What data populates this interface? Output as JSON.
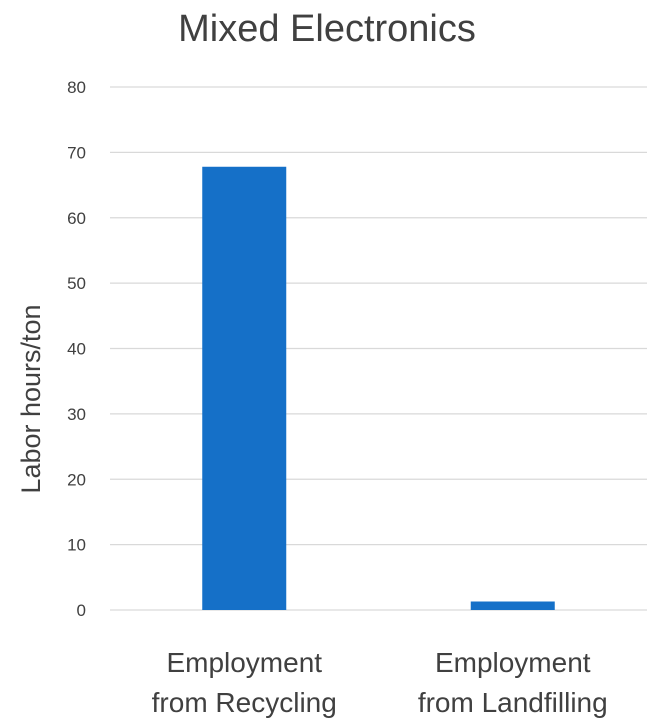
{
  "chart_data": {
    "type": "bar",
    "title": "Mixed Electronics",
    "xlabel": "",
    "ylabel": "Labor hours/ton",
    "categories": [
      [
        "Employment",
        "from Recycling"
      ],
      [
        "Employment",
        "from Landfilling"
      ]
    ],
    "values": [
      67.8,
      1.3
    ],
    "ylim": [
      0,
      80
    ],
    "yticks": [
      0,
      10,
      20,
      30,
      40,
      50,
      60,
      70,
      80
    ],
    "grid": true,
    "legend": "none",
    "bar_color": "#1570c8"
  }
}
